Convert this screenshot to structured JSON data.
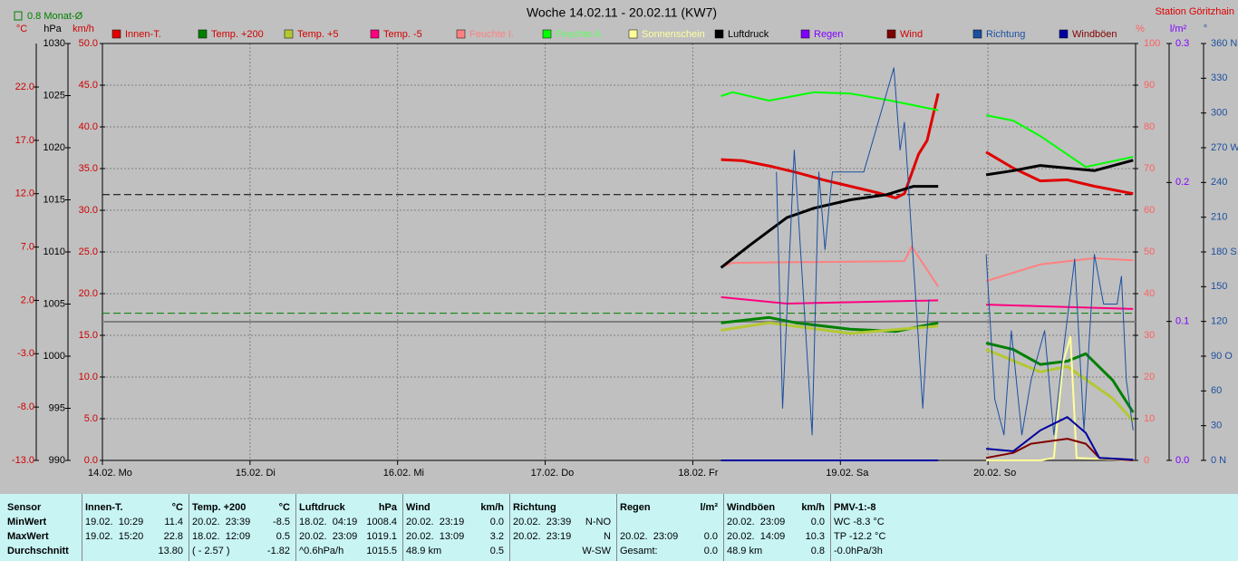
{
  "chart_data": {
    "type": "line",
    "title": "Woche 14.02.11 - 20.02.11 (KW7)",
    "station": "Station Göritzhain",
    "average_note": "0.8 Monat-Ø",
    "axes": {
      "c": {
        "label": "°C",
        "color": "#d00000",
        "lim": [
          -13,
          26.08
        ],
        "ticks": [
          {
            "value": -13,
            "label": "-13.0"
          },
          {
            "value": -8,
            "label": "-8.0"
          },
          {
            "value": -3,
            "label": "-3.0"
          },
          {
            "value": 2,
            "label": "2.0"
          },
          {
            "value": 7,
            "label": "7.0"
          },
          {
            "value": 12,
            "label": "12.0"
          },
          {
            "value": 17,
            "label": "17.0"
          },
          {
            "value": 22,
            "label": "22.0"
          }
        ]
      },
      "hpa": {
        "label": "hPa",
        "color": "#000000",
        "lim": [
          990,
          1030
        ],
        "ticks": [
          990,
          995,
          1000,
          1005,
          1010,
          1015,
          1020,
          1025,
          1030
        ]
      },
      "kmh": {
        "label": "km/h",
        "color": "#d00000",
        "lim": [
          0,
          50
        ],
        "ticks": [
          {
            "value": 0,
            "label": "0.0"
          },
          {
            "value": 5,
            "label": "5.0"
          },
          {
            "value": 10,
            "label": "10.0"
          },
          {
            "value": 15,
            "label": "15.0"
          },
          {
            "value": 20,
            "label": "20.0"
          },
          {
            "value": 25,
            "label": "25.0"
          },
          {
            "value": 30,
            "label": "30.0"
          },
          {
            "value": 35,
            "label": "35.0"
          },
          {
            "value": 40,
            "label": "40.0"
          },
          {
            "value": 45,
            "label": "45.0"
          },
          {
            "value": 50,
            "label": "50.0"
          }
        ]
      },
      "pct": {
        "label": "%",
        "color": "#ff6060",
        "lim": [
          0,
          100
        ],
        "ticks": [
          0,
          10,
          20,
          30,
          40,
          50,
          60,
          70,
          80,
          90,
          100
        ]
      },
      "lm2": {
        "label": "l/m²",
        "color": "#8000ff",
        "lim": [
          0,
          0.3
        ],
        "ticks": [
          {
            "value": 0,
            "label": "0.0"
          },
          0.1,
          0.2,
          0.3
        ]
      },
      "deg": {
        "label": "°",
        "color": "#1c4fa0",
        "lim": [
          0,
          360
        ],
        "ticks": [
          {
            "value": 0,
            "label": "0 N"
          },
          30,
          60,
          {
            "value": 90,
            "label": "90 O"
          },
          120,
          150,
          {
            "value": 180,
            "label": "180 S"
          },
          210,
          240,
          {
            "value": 270,
            "label": "270 W"
          },
          300,
          330,
          {
            "value": 360,
            "label": "360 N"
          }
        ]
      }
    },
    "xlim": [
      0,
      168
    ],
    "xticks": [
      {
        "value": 0,
        "label": "14.02. Mo"
      },
      {
        "value": 24,
        "label": "15.02. Di"
      },
      {
        "value": 48,
        "label": "16.02. Mi"
      },
      {
        "value": 72,
        "label": "17.02. Do"
      },
      {
        "value": 96,
        "label": "18.02. Fr"
      },
      {
        "value": 120,
        "label": "19.02. Sa"
      },
      {
        "value": 144,
        "label": "20.02. So"
      }
    ],
    "grid": true,
    "reference_lines": [
      {
        "axis": "hpa",
        "value": 1015.5,
        "color": "#000000",
        "dashed": true
      },
      {
        "axis": "c",
        "value": 0.8,
        "color": "#008000",
        "dashed": true
      },
      {
        "axis": "c",
        "value": 0,
        "color": "#808080",
        "dashed": false
      }
    ],
    "series": [
      {
        "name": "Innen-T.",
        "color": "#e00000",
        "text_color": "#d00000",
        "axis": "c",
        "width": 3,
        "x": [
          100.6,
          104,
          108.4,
          112.8,
          117.2,
          121.6,
          126,
          129,
          130.4,
          132.7,
          134.1,
          135.9,
          null,
          143.7,
          148.1,
          152.5,
          156.9,
          161.3,
          167.6
        ],
        "values": [
          15.2,
          15.1,
          14.6,
          14.0,
          13.3,
          12.7,
          12.1,
          11.6,
          12.0,
          15.7,
          17.0,
          21.4,
          null,
          15.9,
          14.4,
          13.2,
          13.3,
          12.7,
          12.0
        ]
      },
      {
        "name": "Temp. +200",
        "color": "#008000",
        "text_color": "#d00000",
        "axis": "c",
        "width": 3,
        "x": [
          100.6,
          108.4,
          112.8,
          121.6,
          129,
          135.9,
          null,
          143.7,
          148.1,
          152.5,
          156.9,
          159.9,
          164.3,
          167.6
        ],
        "values": [
          -0.1,
          0.4,
          -0.1,
          -0.7,
          -0.9,
          -0.1,
          null,
          -2.0,
          -2.6,
          -4.0,
          -3.7,
          -3.0,
          -5.5,
          -8.5
        ]
      },
      {
        "name": "Temp. +5",
        "color": "#b4c832",
        "text_color": "#d00000",
        "axis": "c",
        "width": 3,
        "x": [
          100.6,
          108.4,
          121.6,
          135.9,
          null,
          143.7,
          152.5,
          156.9,
          164.3,
          167.6
        ],
        "values": [
          -0.8,
          -0.1,
          -1.1,
          -0.4,
          null,
          -2.6,
          -4.7,
          -4.2,
          -7.2,
          -9.3
        ]
      },
      {
        "name": "Temp. -5",
        "color": "#ff0080",
        "text_color": "#d00000",
        "axis": "c",
        "width": 2,
        "x": [
          100.6,
          111.3,
          135.9,
          null,
          143.7,
          167.6
        ],
        "values": [
          2.3,
          1.7,
          2.0,
          null,
          1.6,
          1.2
        ]
      },
      {
        "name": "Feuchte I.",
        "color": "#ff8080",
        "text_color": "#ff8080",
        "axis": "pct",
        "width": 2,
        "x": [
          100.6,
          102.5,
          130.4,
          131.6,
          135.9,
          null,
          143.7,
          152.5,
          161.3,
          167.6
        ],
        "values": [
          46.3,
          47.4,
          47.8,
          51.3,
          41.7,
          null,
          43,
          47,
          48.5,
          48
        ]
      },
      {
        "name": "Feuchte A.",
        "color": "#00ff00",
        "text_color": "#60ff60",
        "axis": "pct",
        "width": 2,
        "x": [
          100.6,
          102.5,
          108.4,
          115.7,
          121.6,
          127.5,
          135.9,
          null,
          143.7,
          148.1,
          152.5,
          159.9,
          167.6
        ],
        "values": [
          87.4,
          88.3,
          86.3,
          88.3,
          88,
          86.5,
          84,
          null,
          82.8,
          81.5,
          77.8,
          70.4,
          72.8
        ]
      },
      {
        "name": "Sonnenschein",
        "color": "#ffff99",
        "text_color": "#ffffa0",
        "axis": "kmh",
        "width": 2,
        "x": [
          100.6,
          135.9,
          null,
          143.7,
          152.5,
          154.7,
          156.2,
          157.4,
          158.4,
          167.6
        ],
        "values": [
          0,
          0,
          null,
          0,
          0,
          0.3,
          11.7,
          14.8,
          0.3,
          0
        ]
      },
      {
        "name": "Luftdruck",
        "color": "#000000",
        "text_color": "#000000",
        "axis": "hpa",
        "width": 3,
        "x": [
          100.6,
          105.4,
          111.3,
          115.7,
          121.6,
          127.5,
          131.9,
          135.9,
          null,
          143.7,
          148.1,
          152.5,
          161.3,
          167.6
        ],
        "values": [
          1008.5,
          1010.7,
          1013.3,
          1014.2,
          1015.0,
          1015.5,
          1016.3,
          1016.3,
          null,
          1017.4,
          1017.8,
          1018.3,
          1017.8,
          1018.8
        ]
      },
      {
        "name": "Regen",
        "color": "#8000ff",
        "text_color": "#8000ff",
        "axis": "lm2",
        "width": 2,
        "x": [],
        "values": []
      },
      {
        "name": "Wind",
        "color": "#800000",
        "text_color": "#d00000",
        "axis": "kmh",
        "width": 2,
        "x": [
          100.6,
          135.9,
          null,
          143.7,
          148.1,
          151.0,
          156.9,
          159.9,
          162.1,
          167.6
        ],
        "values": [
          0,
          0,
          null,
          0.3,
          0.9,
          2.0,
          2.6,
          2.0,
          0.3,
          0
        ]
      },
      {
        "name": "Richtung",
        "color": "#1c4fa0",
        "text_color": "#1c4fa0",
        "axis": "deg",
        "width": 1,
        "x": [
          109.6,
          110.6,
          112.5,
          115.4,
          116.5,
          117.5,
          118.7,
          120.1,
          123.8,
          128.7,
          129.7,
          130.4,
          133.4,
          134.4,
          null,
          143.7,
          145.1,
          146.6,
          147.8,
          149.5,
          151.0,
          153.2,
          154.7,
          156.2,
          158.1,
          159.6,
          161.3,
          162.8,
          165.0,
          165.7,
          166.5,
          167.6
        ],
        "values": [
          249,
          45,
          268,
          22,
          249,
          182,
          249,
          249,
          249,
          339,
          268,
          292,
          45,
          139,
          null,
          178,
          53,
          22,
          112,
          22,
          69,
          112,
          22,
          92,
          174,
          26,
          178,
          135,
          135,
          159,
          69,
          26
        ]
      },
      {
        "name": "Windböen",
        "color": "#0000a0",
        "text_color": "#800000",
        "axis": "kmh",
        "width": 2,
        "x": [
          100.6,
          135.9,
          null,
          143.7,
          148.1,
          152.5,
          156.9,
          159.9,
          162.1,
          167.6
        ],
        "values": [
          0,
          0,
          null,
          1.4,
          1.1,
          3.6,
          5.2,
          3.3,
          0.3,
          0.1
        ]
      }
    ]
  },
  "table": {
    "row_labels": [
      "Sensor",
      "MinWert",
      "MaxWert",
      "Durchschnitt"
    ],
    "columns": [
      {
        "name": "Innen-T.",
        "unit": "°C",
        "rows": [
          {
            "left": "19.02.  10:29",
            "right": "11.4"
          },
          {
            "left": "19.02.  15:20",
            "right": "22.8"
          },
          {
            "right": "13.80"
          }
        ]
      },
      {
        "name": "Temp. +200",
        "unit": "°C",
        "rows": [
          {
            "left": "20.02.  23:39",
            "right": "-8.5"
          },
          {
            "left": "18.02.  12:09",
            "right": "0.5"
          },
          {
            "left": "( - 2.57 )",
            "right": "-1.82"
          }
        ]
      },
      {
        "name": "Luftdruck",
        "unit": "hPa",
        "rows": [
          {
            "left": "18.02.  04:19",
            "right": "1008.4"
          },
          {
            "left": "20.02.  23:09",
            "right": "1019.1"
          },
          {
            "left": "^0.6hPa/h",
            "right": "1015.5"
          }
        ]
      },
      {
        "name": "Wind",
        "unit": "km/h",
        "rows": [
          {
            "left": "20.02.  23:19",
            "right": "0.0"
          },
          {
            "left": "20.02.  13:09",
            "right": "3.2"
          },
          {
            "left": "48.9 km",
            "right": "0.5"
          }
        ]
      },
      {
        "name": "Richtung",
        "rows": [
          {
            "left": "20.02.  23:39",
            "right": "N-NO"
          },
          {
            "left": "20.02.  23:19",
            "right": "N"
          },
          {
            "right": "W-SW"
          }
        ]
      },
      {
        "name": "Regen",
        "unit": "l/m²",
        "rows": [
          {},
          {
            "left": "20.02.  23:09",
            "right": "0.0"
          },
          {
            "left": "Gesamt:",
            "right": "0.0"
          }
        ]
      },
      {
        "name": "Windböen",
        "unit": "km/h",
        "rows": [
          {
            "left": "20.02.  23:09",
            "right": "0.0"
          },
          {
            "left": "20.02.  14:09",
            "right": "10.3"
          },
          {
            "left": "48.9 km",
            "right": "0.8"
          }
        ]
      },
      {
        "name": "PMV-1:-8",
        "rows": [
          {
            "left": "WC -8.3 °C"
          },
          {
            "left": "TP -12.2 °C"
          },
          {
            "left": "-0.0hPa/3h"
          }
        ]
      }
    ]
  }
}
